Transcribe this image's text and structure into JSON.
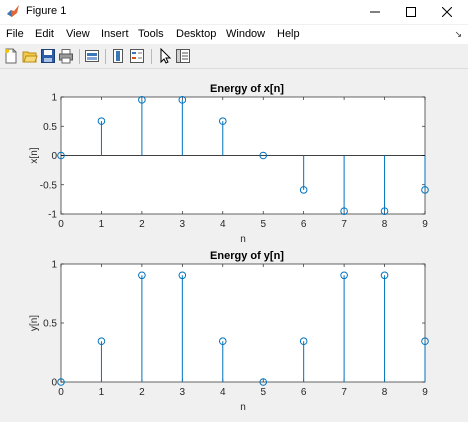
{
  "window": {
    "title": "Figure 1"
  },
  "menubar": {
    "items": [
      "File",
      "Edit",
      "View",
      "Insert",
      "Tools",
      "Desktop",
      "Window",
      "Help"
    ]
  },
  "colors": {
    "stem": "#0072bd",
    "axes_bg": "#ffffff",
    "figure_bg": "#f0f0f0"
  },
  "chart_data": [
    {
      "type": "scatter",
      "style": "stem",
      "title": "Energy of x[n]",
      "xlabel": "n",
      "ylabel": "x[n]",
      "xlim": [
        0,
        9
      ],
      "ylim": [
        -1,
        1
      ],
      "xticks": [
        "0",
        "1",
        "2",
        "3",
        "4",
        "5",
        "6",
        "7",
        "8",
        "9"
      ],
      "yticks": [
        "-1",
        "-0.5",
        "0",
        "0.5",
        "1"
      ],
      "x": [
        0,
        1,
        2,
        3,
        4,
        5,
        6,
        7,
        8,
        9
      ],
      "y": [
        0,
        0.5878,
        0.9511,
        0.9511,
        0.5878,
        0,
        -0.5878,
        -0.9511,
        -0.9511,
        -0.5878
      ],
      "grid": false
    },
    {
      "type": "scatter",
      "style": "stem",
      "title": "Energy of y[n]",
      "xlabel": "n",
      "ylabel": "y[n]",
      "xlim": [
        0,
        9
      ],
      "ylim": [
        0,
        1
      ],
      "xticks": [
        "0",
        "1",
        "2",
        "3",
        "4",
        "5",
        "6",
        "7",
        "8",
        "9"
      ],
      "yticks": [
        "0",
        "0.5",
        "1"
      ],
      "x": [
        0,
        1,
        2,
        3,
        4,
        5,
        6,
        7,
        8,
        9
      ],
      "y": [
        0,
        0.3455,
        0.9045,
        0.9045,
        0.3455,
        0,
        0.3455,
        0.9045,
        0.9045,
        0.3455
      ],
      "grid": false
    }
  ]
}
